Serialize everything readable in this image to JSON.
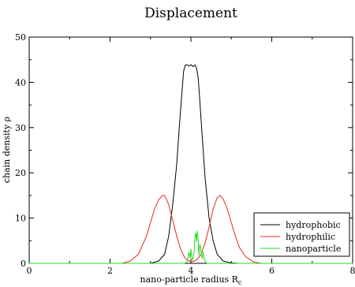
{
  "chart_data": {
    "type": "line",
    "title": "Displacement",
    "xlabel": "nano-particle radius R",
    "xlabel_subscript": "c",
    "ylabel": "chain density ρ",
    "xlim": [
      0,
      8
    ],
    "ylim": [
      0,
      50
    ],
    "xticks": [
      0,
      2,
      4,
      6,
      8
    ],
    "yticks": [
      0,
      10,
      20,
      30,
      40,
      50
    ],
    "xtick_labels": [
      "0",
      "2",
      "4",
      "6",
      "8"
    ],
    "ytick_labels": [
      "0",
      "10",
      "20",
      "30",
      "40",
      "50"
    ],
    "legend_position": "bottom-right",
    "grid": false,
    "series": [
      {
        "name": "hydrophobic",
        "color": "#000000",
        "x": [
          3.0,
          3.2,
          3.35,
          3.45,
          3.55,
          3.65,
          3.72,
          3.78,
          3.82,
          3.86,
          3.9,
          3.95,
          4.0,
          4.05,
          4.1,
          4.14,
          4.18,
          4.22,
          4.28,
          4.35,
          4.45,
          4.55,
          4.65,
          4.8,
          5.0,
          5.2
        ],
        "y": [
          0,
          0.5,
          2,
          6,
          13,
          22,
          31,
          38,
          42.5,
          43.8,
          43.9,
          43.6,
          43.9,
          43.5,
          43.8,
          43.2,
          41,
          36,
          28,
          19,
          10,
          5,
          2,
          0.5,
          0.1,
          0
        ]
      },
      {
        "name": "hydrophilic",
        "color": "#e8281f",
        "x": [
          2.3,
          2.5,
          2.7,
          2.9,
          3.0,
          3.1,
          3.2,
          3.3,
          3.35,
          3.45,
          3.55,
          3.65,
          3.75,
          3.85,
          3.95,
          4.05,
          4.15,
          4.25,
          4.35,
          4.45,
          4.55,
          4.65,
          4.72,
          4.8,
          4.9,
          5.0,
          5.1,
          5.2,
          5.35,
          5.55,
          5.75
        ],
        "y": [
          0,
          0.5,
          2,
          6,
          9,
          12,
          14,
          15,
          15,
          13,
          9.5,
          6,
          3,
          1.2,
          0.5,
          0.4,
          0.8,
          2,
          4.5,
          8,
          12,
          14.5,
          15,
          14.2,
          12,
          9,
          6,
          3.5,
          1.5,
          0.3,
          0
        ]
      },
      {
        "name": "nanoparticle",
        "color": "#22dd1c",
        "x": [
          3.85,
          3.92,
          3.95,
          3.98,
          4.0,
          4.02,
          4.05,
          4.08,
          4.1,
          4.12,
          4.14,
          4.16,
          4.18,
          4.2,
          4.22,
          4.24,
          4.26,
          4.28,
          4.3,
          4.33,
          4.36,
          4.4
        ],
        "y": [
          0,
          0.6,
          2.5,
          1.2,
          3.2,
          1.4,
          0.8,
          2.6,
          5.8,
          6.8,
          4.8,
          7.2,
          5.2,
          1.8,
          4.2,
          3.6,
          1.6,
          1.2,
          2.6,
          0.9,
          0.3,
          0
        ]
      }
    ]
  }
}
